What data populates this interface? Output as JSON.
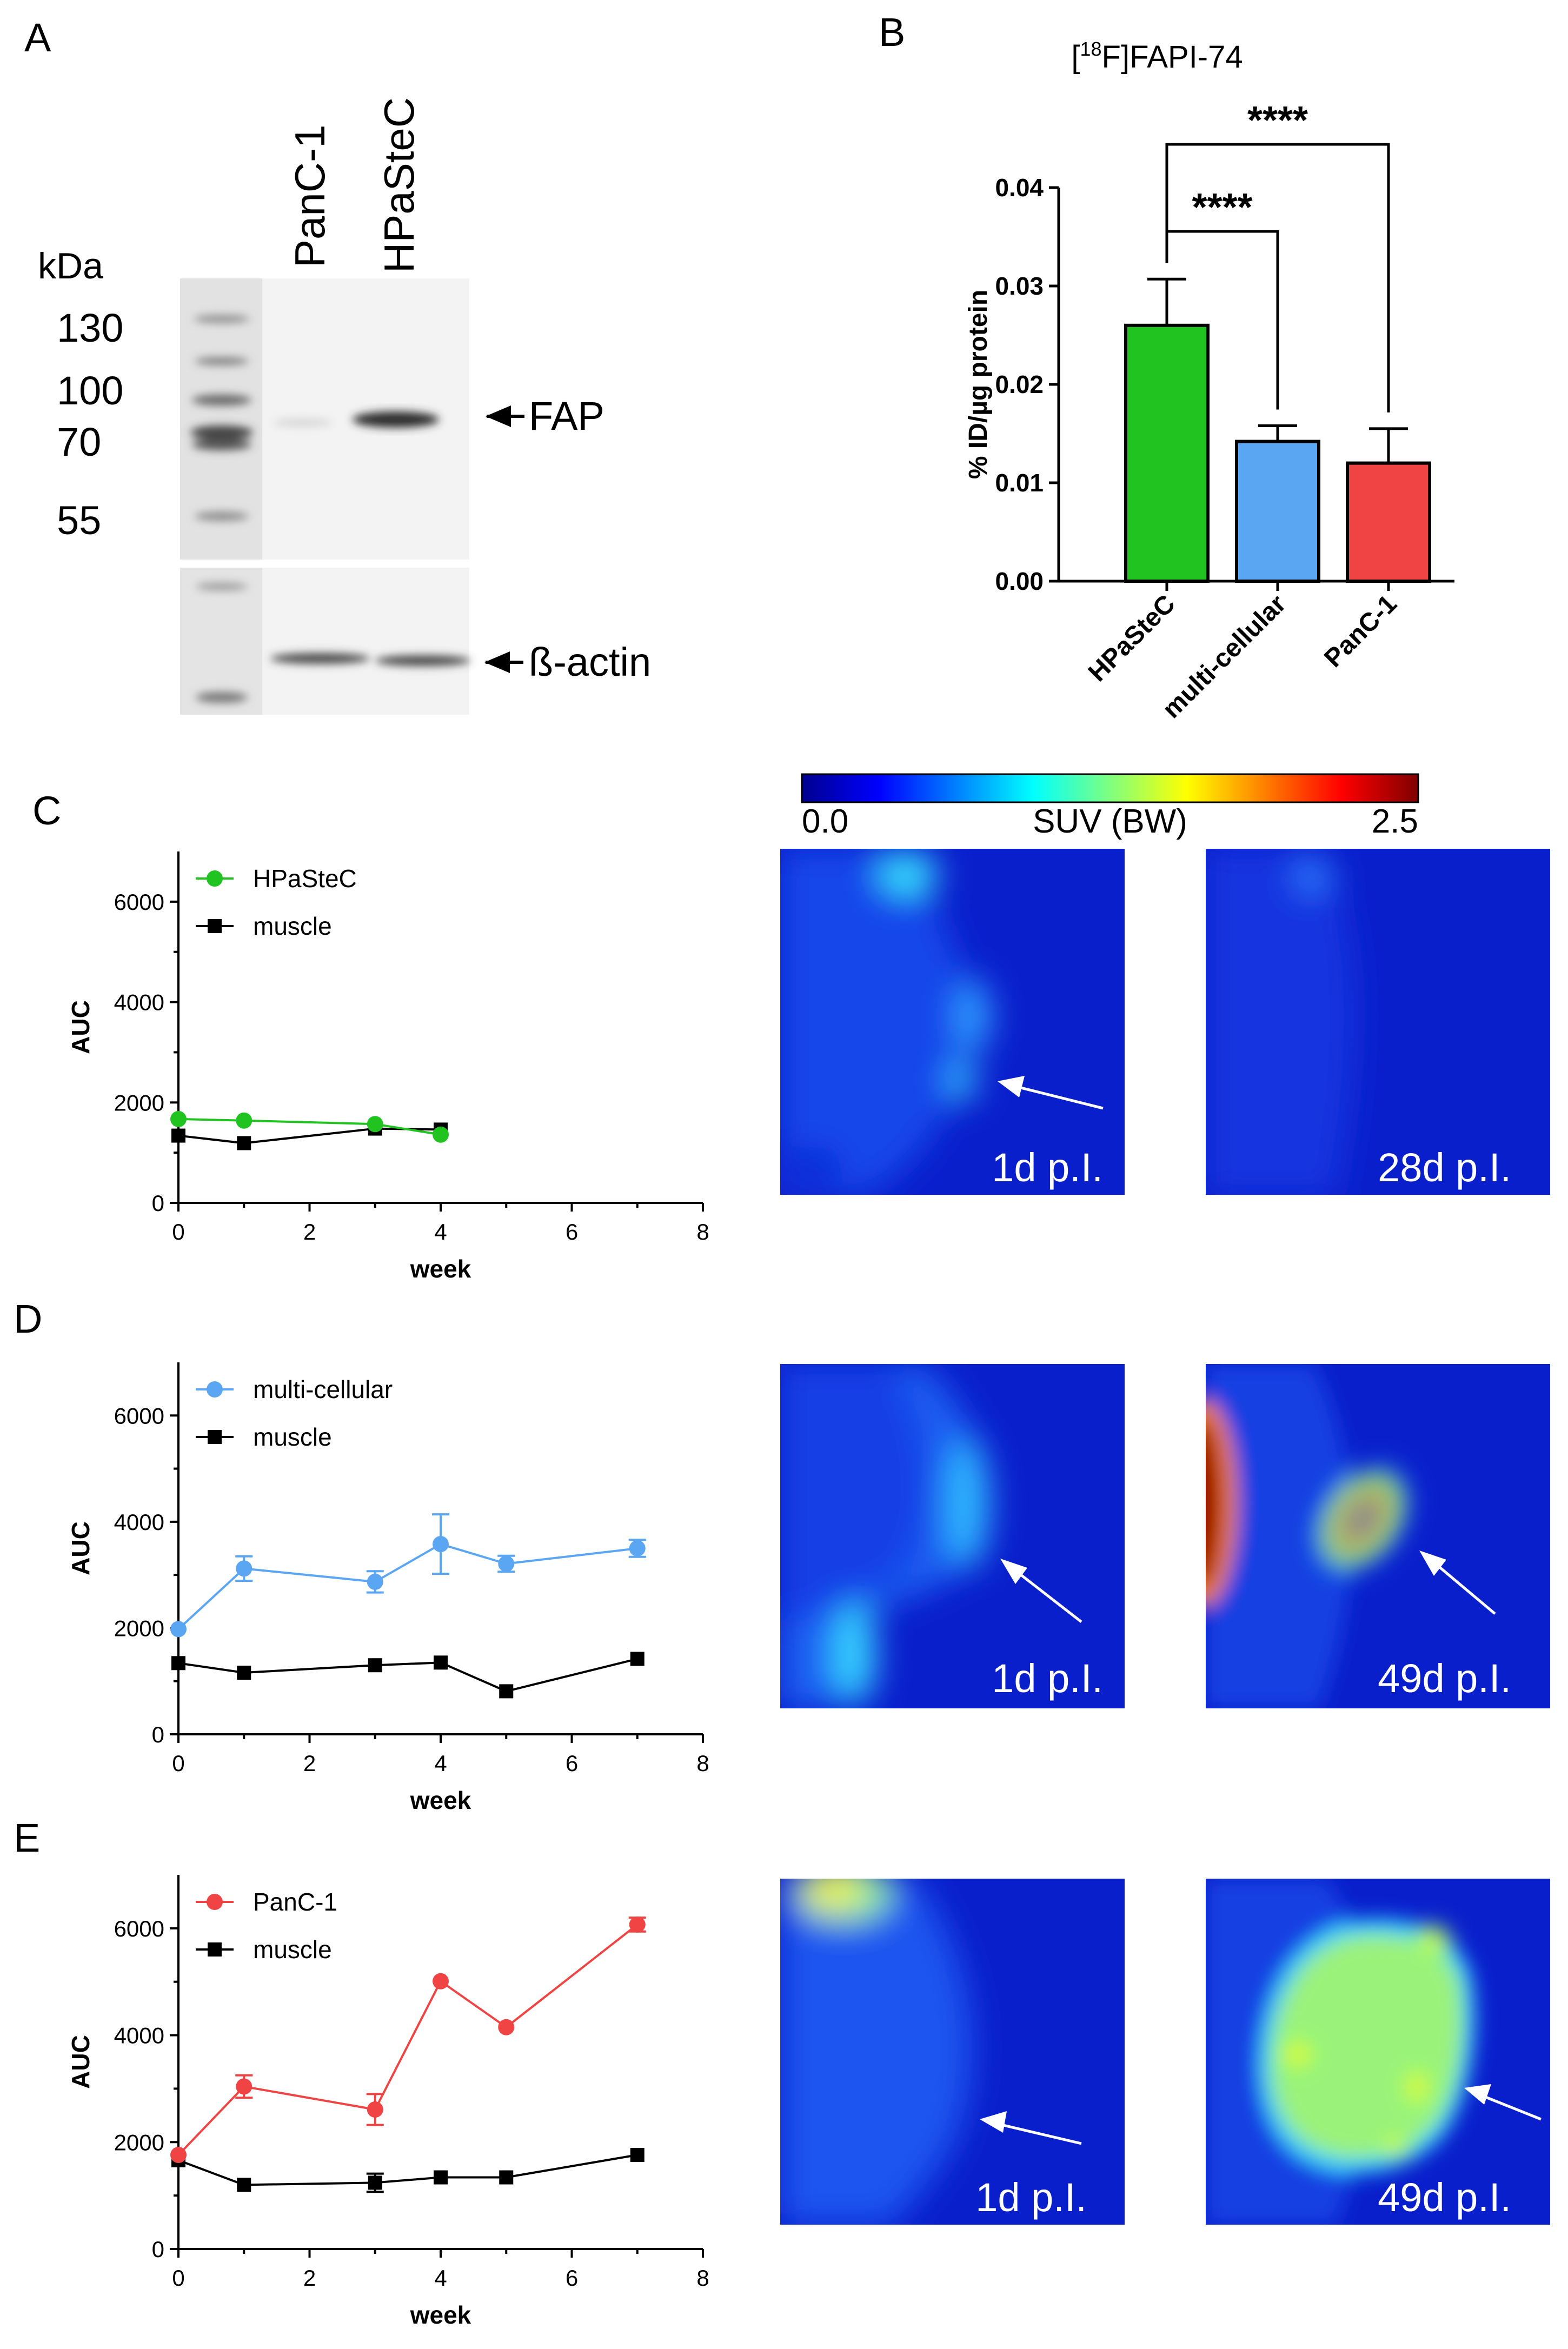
{
  "panels": {
    "A": {
      "label": "A",
      "lanes": [
        "PanC-1",
        "HPaSteC"
      ],
      "unit": "kDa",
      "markers": [
        "130",
        "100",
        "70",
        "55"
      ],
      "band_labels": [
        "FAP",
        "ß-actin"
      ]
    },
    "B": {
      "label": "B"
    },
    "C": {
      "label": "C",
      "images": [
        "1d p.I.",
        "28d p.I."
      ]
    },
    "D": {
      "label": "D",
      "images": [
        "1d p.I.",
        "49d p.I."
      ]
    },
    "E": {
      "label": "E",
      "images": [
        "1d p.I.",
        "49d p.I."
      ]
    }
  },
  "colorbar": {
    "min_label": "0.0",
    "max_label": "2.5",
    "title": "SUV (BW)"
  },
  "colors": {
    "HPaSteC": "#21c321",
    "multi_cellular": "#5aa6f3",
    "PanC_1": "#f04444",
    "muscle": "#000000"
  },
  "chart_data": [
    {
      "id": "B",
      "type": "bar",
      "title": "[18F]FAPI-74",
      "title_parts": {
        "pre": "[",
        "sup": "18",
        "post": "F]FAPI-74"
      },
      "categories": [
        "HPaSteC",
        "multi-cellular",
        "PanC-1"
      ],
      "values": [
        0.026,
        0.0142,
        0.012
      ],
      "errors": [
        0.0047,
        0.0016,
        0.0035
      ],
      "ylabel": "% ID/µg protein",
      "ylim": [
        0,
        0.04
      ],
      "yticks": [
        "0.00",
        "0.01",
        "0.02",
        "0.03",
        "0.04"
      ],
      "significance": [
        {
          "from": "HPaSteC",
          "to": "multi-cellular",
          "label": "****"
        },
        {
          "from": "HPaSteC",
          "to": "PanC-1",
          "label": "****"
        }
      ]
    },
    {
      "id": "C",
      "type": "line",
      "xlabel": "week",
      "ylabel": "AUC",
      "xlim": [
        0,
        8
      ],
      "ylim": [
        0,
        7000
      ],
      "xticks": [
        "0",
        "2",
        "4",
        "6",
        "8"
      ],
      "yticks": [
        "0",
        "2000",
        "4000",
        "6000"
      ],
      "series": [
        {
          "name": "HPaSteC",
          "marker": "circle",
          "x": [
            0,
            1,
            3,
            4
          ],
          "y": [
            1670,
            1640,
            1570,
            1360
          ],
          "err": [
            0,
            0,
            0,
            0
          ]
        },
        {
          "name": "muscle",
          "marker": "square",
          "x": [
            0,
            1,
            3,
            4
          ],
          "y": [
            1340,
            1190,
            1480,
            1460
          ],
          "err": [
            0,
            0,
            0,
            0
          ]
        }
      ]
    },
    {
      "id": "D",
      "type": "line",
      "xlabel": "week",
      "ylabel": "AUC",
      "xlim": [
        0,
        8
      ],
      "ylim": [
        0,
        7000
      ],
      "xticks": [
        "0",
        "2",
        "4",
        "6",
        "8"
      ],
      "yticks": [
        "0",
        "2000",
        "4000",
        "6000"
      ],
      "series": [
        {
          "name": "multi-cellular",
          "marker": "circle",
          "x": [
            0,
            1,
            3,
            4,
            5,
            7
          ],
          "y": [
            1980,
            3120,
            2870,
            3580,
            3210,
            3500
          ],
          "err": [
            0,
            230,
            200,
            560,
            150,
            160
          ]
        },
        {
          "name": "muscle",
          "marker": "square",
          "x": [
            0,
            1,
            3,
            4,
            5,
            7
          ],
          "y": [
            1340,
            1160,
            1300,
            1350,
            810,
            1420
          ],
          "err": [
            0,
            0,
            0,
            0,
            0,
            0
          ]
        }
      ]
    },
    {
      "id": "E",
      "type": "line",
      "xlabel": "week",
      "ylabel": "AUC",
      "xlim": [
        0,
        8
      ],
      "ylim": [
        0,
        7000
      ],
      "xticks": [
        "0",
        "2",
        "4",
        "6",
        "8"
      ],
      "yticks": [
        "0",
        "2000",
        "4000",
        "6000"
      ],
      "series": [
        {
          "name": "PanC-1",
          "marker": "circle",
          "x": [
            0,
            1,
            3,
            4,
            5,
            7
          ],
          "y": [
            1760,
            3040,
            2610,
            5010,
            4150,
            6070
          ],
          "err": [
            0,
            210,
            290,
            0,
            0,
            130
          ]
        },
        {
          "name": "muscle",
          "marker": "square",
          "x": [
            0,
            1,
            3,
            4,
            5,
            7
          ],
          "y": [
            1660,
            1200,
            1240,
            1340,
            1340,
            1760
          ],
          "err": [
            0,
            0,
            170,
            0,
            0,
            0
          ]
        }
      ]
    }
  ]
}
